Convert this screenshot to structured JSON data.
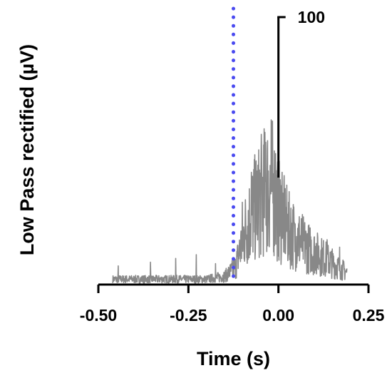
{
  "chart_data": {
    "type": "line",
    "title": "",
    "xlabel": "Time (s)",
    "ylabel": "Low Pass rectified (µV)",
    "xlim": [
      -0.5,
      0.25
    ],
    "x_ticks": [
      -0.5,
      -0.25,
      0.0,
      0.25
    ],
    "x_tick_labels": [
      "-0.50",
      "-0.25",
      "0.00",
      "0.25"
    ],
    "y_axis_visible": false,
    "scale_bar": {
      "label": "100",
      "value": 100,
      "unit": "µV",
      "x": 0.0
    },
    "event_marker": {
      "x": -0.125,
      "style": "dotted",
      "color": "#4a4af0"
    },
    "grid": false,
    "legend": "none",
    "series": [
      {
        "color": "#888888",
        "noise_range": [
          -0.46,
          0.19
        ],
        "envelope": [
          {
            "x": -0.46,
            "y": 8
          },
          {
            "x": -0.2,
            "y": 8
          },
          {
            "x": -0.15,
            "y": 12
          },
          {
            "x": -0.12,
            "y": 25
          },
          {
            "x": -0.09,
            "y": 85
          },
          {
            "x": -0.05,
            "y": 130
          },
          {
            "x": -0.02,
            "y": 150
          },
          {
            "x": 0.0,
            "y": 110
          },
          {
            "x": 0.03,
            "y": 80
          },
          {
            "x": 0.08,
            "y": 55
          },
          {
            "x": 0.14,
            "y": 35
          },
          {
            "x": 0.19,
            "y": 18
          }
        ],
        "peaks": [
          {
            "x": -0.445,
            "y": 25
          },
          {
            "x": -0.355,
            "y": 30
          },
          {
            "x": -0.285,
            "y": 35
          },
          {
            "x": -0.228,
            "y": 40
          },
          {
            "x": -0.175,
            "y": 28
          },
          {
            "x": -0.1,
            "y": 110
          },
          {
            "x": -0.075,
            "y": 150
          },
          {
            "x": -0.055,
            "y": 180
          },
          {
            "x": -0.035,
            "y": 190
          },
          {
            "x": -0.02,
            "y": 220
          },
          {
            "x": -0.008,
            "y": 175
          },
          {
            "x": 0.01,
            "y": 150
          },
          {
            "x": 0.028,
            "y": 110
          },
          {
            "x": 0.045,
            "y": 75
          },
          {
            "x": 0.07,
            "y": 60
          },
          {
            "x": 0.105,
            "y": 55
          },
          {
            "x": 0.135,
            "y": 60
          },
          {
            "x": 0.17,
            "y": 50
          }
        ]
      }
    ]
  }
}
